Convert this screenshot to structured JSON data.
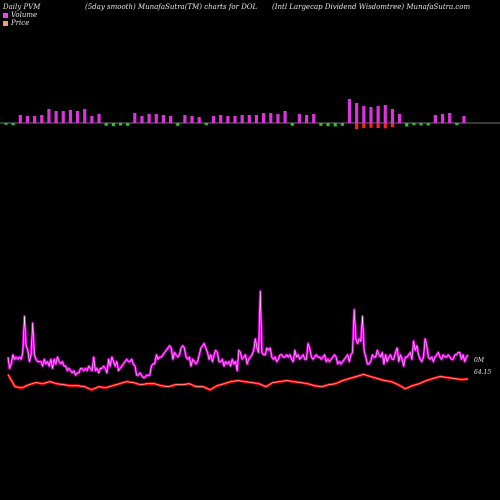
{
  "header": {
    "left": "Daily PVM",
    "center": "(5day smooth) MunafaSutra(TM) charts for DOL",
    "right": "(Intl Largecap Dividend Wisdomtree) MunafaSutra.com"
  },
  "legend": [
    {
      "label": "Volume",
      "color": "#ee44ee"
    },
    {
      "label": "Price",
      "color": "#f0a070"
    }
  ],
  "colors": {
    "bar_up": "#dd33dd",
    "bar_down_red": "#ff2222",
    "bar_down_green": "#22cc22",
    "volume_line_outer": "#dd00dd",
    "volume_line_inner": "#ffffff",
    "price_line_outer": "#ff0000",
    "price_line_inner": "#ffffff",
    "baseline": "#999999"
  },
  "chart_data": {
    "type": "line",
    "title": "",
    "value_labels": {
      "volume": "0M",
      "price": "64.15"
    },
    "bars": {
      "values": [
        5,
        6,
        8,
        7,
        7,
        8,
        14,
        12,
        12,
        13,
        12,
        14,
        7,
        9,
        8,
        9,
        7,
        8,
        10,
        7,
        9,
        9,
        8,
        7,
        8,
        8,
        7,
        6,
        6,
        7,
        8,
        7,
        7,
        8,
        8,
        8,
        10,
        10,
        9,
        12,
        8,
        9,
        8,
        9,
        8,
        9,
        10,
        8,
        24,
        20,
        17,
        16,
        17,
        18,
        14,
        9,
        10,
        6,
        7,
        7,
        8,
        9,
        10,
        6,
        7
      ],
      "signs": [
        "g",
        "g",
        "u",
        "u",
        "u",
        "u",
        "u",
        "u",
        "u",
        "u",
        "u",
        "u",
        "u",
        "u",
        "g",
        "g",
        "g",
        "g",
        "u",
        "u",
        "u",
        "u",
        "u",
        "u",
        "g",
        "u",
        "u",
        "u",
        "g",
        "u",
        "u",
        "u",
        "u",
        "u",
        "u",
        "u",
        "u",
        "u",
        "u",
        "u",
        "g",
        "u",
        "u",
        "u",
        "g",
        "g",
        "g",
        "g",
        "u",
        "r",
        "r",
        "r",
        "r",
        "r",
        "r",
        "u",
        "g",
        "g",
        "g",
        "g",
        "u",
        "u",
        "u",
        "g",
        "u"
      ]
    },
    "volume_line": [
      11,
      6,
      8,
      12,
      10,
      11,
      10,
      11,
      10,
      13,
      29,
      16,
      14,
      9,
      12,
      26,
      12,
      10,
      9,
      9,
      9,
      7,
      10,
      8,
      9,
      7,
      10,
      6,
      10,
      8,
      11,
      9,
      8,
      9,
      7,
      7,
      5,
      6,
      5,
      4,
      5,
      3,
      4,
      4,
      6,
      6,
      5,
      6,
      5,
      7,
      6,
      5,
      11,
      5,
      6,
      4,
      6,
      6,
      7,
      6,
      4,
      10,
      7,
      11,
      9,
      7,
      9,
      5,
      6,
      7,
      8,
      9,
      10,
      9,
      9,
      10,
      8,
      7,
      3,
      3,
      4,
      3,
      2,
      2,
      3,
      3,
      3,
      7,
      8,
      8,
      12,
      10,
      11,
      11,
      12,
      13,
      14,
      15,
      16,
      15,
      10,
      13,
      12,
      11,
      12,
      15,
      16,
      15,
      11,
      10,
      11,
      7,
      10,
      9,
      8,
      9,
      12,
      15,
      16,
      17,
      15,
      13,
      10,
      12,
      9,
      12,
      14,
      13,
      9,
      9,
      10,
      7,
      9,
      8,
      9,
      7,
      10,
      8,
      9,
      5,
      14,
      13,
      10,
      11,
      12,
      8,
      10,
      11,
      12,
      14,
      19,
      15,
      13,
      40,
      13,
      12,
      12,
      15,
      14,
      15,
      11,
      10,
      11,
      9,
      10,
      12,
      12,
      11,
      11,
      12,
      11,
      12,
      10,
      9,
      14,
      11,
      12,
      10,
      11,
      12,
      10,
      10,
      17,
      15,
      11,
      10,
      11,
      12,
      11,
      11,
      10,
      11,
      12,
      9,
      10,
      9,
      10,
      11,
      12,
      11,
      8,
      9,
      8,
      9,
      10,
      11,
      12,
      9,
      12,
      13,
      32,
      19,
      17,
      19,
      18,
      29,
      14,
      11,
      8,
      8,
      9,
      12,
      11,
      11,
      14,
      12,
      11,
      13,
      8,
      12,
      9,
      11,
      12,
      10,
      10,
      13,
      15,
      9,
      12,
      10,
      7,
      11,
      11,
      12,
      13,
      10,
      18,
      14,
      16,
      12,
      10,
      9,
      11,
      19,
      16,
      11,
      10,
      11,
      9,
      11,
      12,
      13,
      11,
      10,
      12,
      11,
      11,
      12,
      11,
      10,
      10,
      12,
      12,
      13,
      13,
      10,
      12,
      9,
      11,
      12
    ],
    "price_line": [
      64.6,
      63.4,
      63.3,
      63.6,
      63.8,
      63.7,
      63.9,
      63.7,
      63.6,
      63.5,
      63.5,
      63.4,
      63.1,
      63.4,
      63.3,
      63.5,
      63.7,
      63.9,
      63.8,
      63.6,
      63.7,
      63.7,
      63.5,
      63.4,
      63.6,
      63.6,
      63.7,
      63.4,
      63.4,
      63.1,
      63.5,
      63.7,
      63.9,
      64.0,
      63.9,
      63.8,
      63.7,
      63.4,
      63.8,
      63.9,
      64.0,
      63.9,
      63.8,
      63.7,
      63.5,
      63.4,
      63.6,
      63.7,
      64.0,
      64.2,
      64.4,
      64.6,
      64.4,
      64.2,
      64.0,
      63.9,
      63.6,
      63.2,
      63.5,
      63.7,
      64.0,
      64.2,
      64.4,
      64.3,
      64.2,
      64.1,
      64.15
    ],
    "ylim_volume": [
      0,
      45
    ],
    "ylim_price": [
      62.5,
      66
    ]
  }
}
